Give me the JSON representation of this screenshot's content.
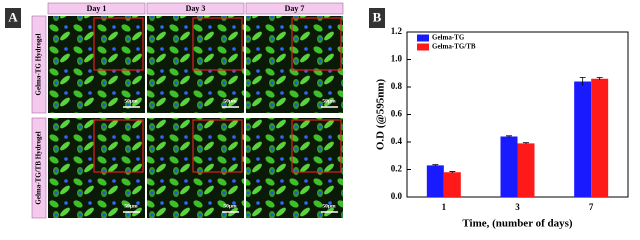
{
  "panel_a": {
    "label": "A",
    "columns": [
      "Day 1",
      "Day 3",
      "Day 7"
    ],
    "rows": [
      "Gelma-TG Hydrogel",
      "Gelma-TG/TB Hydrogel"
    ],
    "scale_bars": [
      [
        "50μm",
        "50μm",
        "50μm"
      ],
      [
        "50μm",
        "50μm",
        "50μm"
      ]
    ]
  },
  "chart_data": {
    "type": "bar",
    "panel_label": "B",
    "categories": [
      "1",
      "3",
      "7"
    ],
    "x_label": "Time, (number of days)",
    "y_label": "O.D (@595nm)",
    "series": [
      {
        "name": "Gelma-TG",
        "color": "#1a1aff",
        "values": [
          0.23,
          0.44,
          0.84
        ],
        "errors": [
          0.005,
          0.005,
          0.03
        ]
      },
      {
        "name": "Gelma-TG/TB",
        "color": "#ff1a1a",
        "values": [
          0.18,
          0.39,
          0.86
        ],
        "errors": [
          0.005,
          0.005,
          0.01
        ]
      }
    ],
    "ylim": [
      0,
      1.2
    ],
    "yticks": [
      {
        "value": 0,
        "label": "0.0"
      },
      0.2,
      0.4,
      0.6,
      0.8,
      {
        "value": 1,
        "label": "1.0"
      },
      1.2
    ],
    "legend": "upper left"
  }
}
